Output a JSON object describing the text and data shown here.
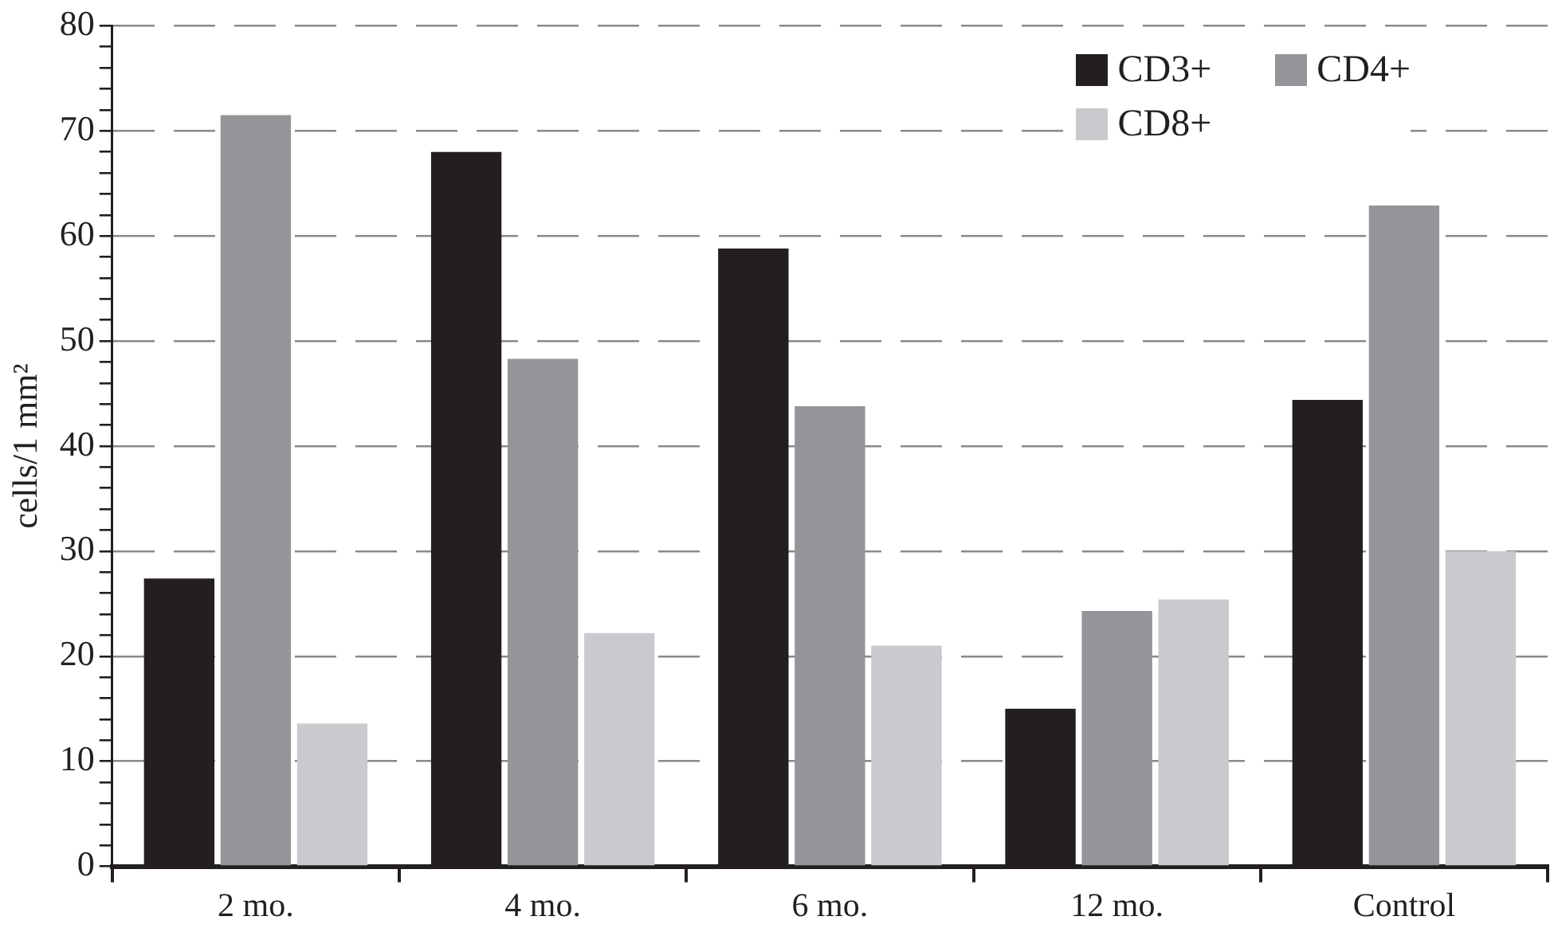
{
  "chart_data": {
    "type": "bar",
    "ylabel": "cells/1 mm²",
    "categories": [
      "2 mo.",
      "4 mo.",
      "6 mo.",
      "12 mo.",
      "Control"
    ],
    "series": [
      {
        "name": "CD3+",
        "color": "#231f20",
        "values": [
          27.4,
          68.0,
          58.8,
          15.0,
          44.4
        ]
      },
      {
        "name": "CD4+",
        "color": "#949598",
        "values": [
          71.5,
          48.3,
          43.8,
          24.3,
          62.9
        ]
      },
      {
        "name": "CD8+",
        "color": "#c9cacd",
        "values": [
          13.6,
          22.2,
          21.0,
          25.4,
          30.0
        ]
      }
    ],
    "ylim": [
      0,
      80
    ],
    "yticks": [
      0,
      {
        "value": 2,
        "label": null
      },
      {
        "value": 4,
        "label": null
      },
      {
        "value": 6,
        "label": null
      },
      {
        "value": 8,
        "label": null
      },
      10,
      {
        "value": 12,
        "label": null
      },
      {
        "value": 14,
        "label": null
      },
      {
        "value": 16,
        "label": null
      },
      {
        "value": 18,
        "label": null
      },
      20,
      {
        "value": 22,
        "label": null
      },
      {
        "value": 24,
        "label": null
      },
      {
        "value": 26,
        "label": null
      },
      {
        "value": 28,
        "label": null
      },
      30,
      {
        "value": 32,
        "label": null
      },
      {
        "value": 34,
        "label": null
      },
      {
        "value": 36,
        "label": null
      },
      {
        "value": 38,
        "label": null
      },
      40,
      {
        "value": 42,
        "label": null
      },
      {
        "value": 44,
        "label": null
      },
      {
        "value": 46,
        "label": null
      },
      {
        "value": 48,
        "label": null
      },
      50,
      {
        "value": 52,
        "label": null
      },
      {
        "value": 54,
        "label": null
      },
      {
        "value": 56,
        "label": null
      },
      {
        "value": 58,
        "label": null
      },
      60,
      {
        "value": 62,
        "label": null
      },
      {
        "value": 64,
        "label": null
      },
      {
        "value": 66,
        "label": null
      },
      {
        "value": 68,
        "label": null
      },
      70,
      {
        "value": 72,
        "label": null
      },
      {
        "value": 74,
        "label": null
      },
      {
        "value": 76,
        "label": null
      },
      {
        "value": 78,
        "label": null
      },
      80
    ],
    "grid": "y",
    "legend": "top right"
  }
}
